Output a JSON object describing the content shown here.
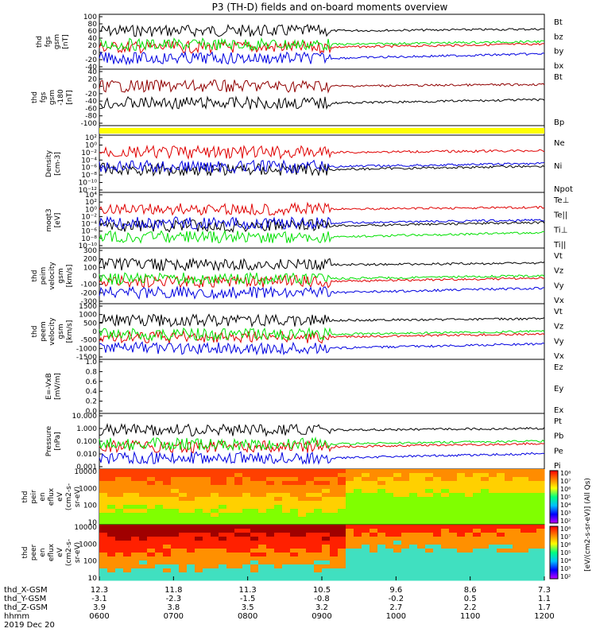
{
  "title": "P3 (TH-D) fields and on-board moments overview",
  "colors": {
    "black": "#000000",
    "red": "#e00000",
    "green": "#00e000",
    "blue": "#0000e0",
    "dark_red": "#900000",
    "yellow": "#ffff00"
  },
  "chart_data": {
    "type": "line",
    "time_range": [
      "2019-12-20 06:00",
      "2019-12-20 12:00"
    ],
    "panels": [
      {
        "name": "fgs-gsm",
        "ylabel": [
          "thd",
          "fgs",
          "gsm",
          "[nT]"
        ],
        "yticks": [
          "100",
          "80",
          "60",
          "40",
          "20",
          "0",
          "-20",
          "-40"
        ],
        "ylim": [
          -40,
          100
        ],
        "legend": [
          {
            "label": "Bt",
            "color": "black"
          },
          {
            "label": "bz",
            "color": "red"
          },
          {
            "label": "by",
            "color": "green"
          },
          {
            "label": "bx",
            "color": "blue"
          }
        ]
      },
      {
        "name": "fgs-gsm-theta-phi",
        "ylabel": [
          "thd",
          "fgs",
          "gsm",
          "-180",
          "[nT]"
        ],
        "yticks": [
          "40",
          "20",
          "0",
          "-20",
          "-40",
          "-60",
          "-80",
          "-100"
        ],
        "ylim": [
          -100,
          40
        ],
        "legend": [
          {
            "label": "Bt",
            "color": "dark_red"
          },
          {
            "label": "Bp",
            "color": "black"
          }
        ]
      },
      {
        "name": "flag",
        "ylabel": [],
        "yticks": [],
        "legend": []
      },
      {
        "name": "density",
        "ylabel": [
          "Density",
          "[cm-3]"
        ],
        "yticks": [
          "10²",
          "10⁰",
          "10⁻²",
          "10⁻⁴",
          "10⁻⁶",
          "10⁻⁸",
          "10⁻¹⁰",
          "10⁻¹²"
        ],
        "legend": [
          {
            "label": "Ne",
            "color": "red"
          },
          {
            "label": "Ni",
            "color": "black"
          },
          {
            "label": "Npot",
            "color": "blue"
          }
        ]
      },
      {
        "name": "temperature",
        "ylabel": [
          "moqt3",
          "[eV]"
        ],
        "yticks": [
          "10⁴",
          "10²",
          "10⁰",
          "10⁻²",
          "10⁻⁴",
          "10⁻⁶",
          "10⁻⁸",
          "10⁻¹⁰"
        ],
        "legend": [
          {
            "label": "Te⊥",
            "color": "red"
          },
          {
            "label": "Te||",
            "color": "black"
          },
          {
            "label": "Ti⊥",
            "color": "blue"
          },
          {
            "label": "Ti||",
            "color": "green"
          }
        ]
      },
      {
        "name": "peim-velocity",
        "ylabel": [
          "thd",
          "peim",
          "velocity",
          "gsm",
          "[km/s]"
        ],
        "yticks": [
          "300",
          "200",
          "100",
          "0",
          "-100",
          "-200",
          "-300"
        ],
        "ylim": [
          -300,
          300
        ],
        "legend": [
          {
            "label": "Vt",
            "color": "black"
          },
          {
            "label": "Vz",
            "color": "red"
          },
          {
            "label": "Vy",
            "color": "green"
          },
          {
            "label": "Vx",
            "color": "blue"
          }
        ]
      },
      {
        "name": "peem-velocity",
        "ylabel": [
          "thd",
          "peem",
          "velocity",
          "gsm",
          "[km/s]"
        ],
        "yticks": [
          "1500",
          "1000",
          "500",
          "0",
          "-500",
          "-1000",
          "-1500"
        ],
        "ylim": [
          -1500,
          1500
        ],
        "legend": [
          {
            "label": "Vt",
            "color": "black"
          },
          {
            "label": "Vz",
            "color": "red"
          },
          {
            "label": "Vy",
            "color": "green"
          },
          {
            "label": "Vx",
            "color": "blue"
          }
        ]
      },
      {
        "name": "efield",
        "ylabel": [
          "E=-VxB",
          "[mV/m]"
        ],
        "yticks": [
          "1.0",
          "0.8",
          "0.6",
          "0.4",
          "0.2",
          "0.0"
        ],
        "ylim": [
          0,
          1
        ],
        "legend": [
          {
            "label": "Ez",
            "color": "red"
          },
          {
            "label": "Ey",
            "color": "green"
          },
          {
            "label": "Ex",
            "color": "blue"
          }
        ]
      },
      {
        "name": "pressure",
        "ylabel": [
          "Pressure",
          "[nPa]"
        ],
        "yticks": [
          "10.000",
          "1.000",
          "0.100",
          "0.010",
          "0.001"
        ],
        "legend": [
          {
            "label": "Pt",
            "color": "black"
          },
          {
            "label": "Pb",
            "color": "red"
          },
          {
            "label": "Pe",
            "color": "green"
          },
          {
            "label": "Pi",
            "color": "blue"
          }
        ]
      },
      {
        "name": "peir-en-eflux",
        "ylabel": [
          "thd",
          "peir",
          "en",
          "eflux",
          "eV",
          "(cm2-s-",
          "sr-eV)"
        ],
        "yticks": [
          "10000",
          "1000",
          "100",
          "10"
        ]
      },
      {
        "name": "peer-en-eflux",
        "ylabel": [
          "thd",
          "peer",
          "en",
          "eflux",
          "eV",
          "(cm2-s-",
          "sr-eV)"
        ],
        "yticks": [
          "10000",
          "1000",
          "100",
          "10"
        ]
      }
    ],
    "colorbar": {
      "ticks": [
        "10⁸",
        "10⁷",
        "10⁶",
        "10⁵",
        "10⁴",
        "10³",
        "10²"
      ],
      "label": "[eV/(cm2-s-sr-eV)] (All Qs)"
    },
    "x_axis": {
      "rows": [
        {
          "label": "thd_X-GSM",
          "values": [
            "12.3",
            "11.8",
            "11.3",
            "10.5",
            "9.6",
            "8.6",
            "7.3"
          ]
        },
        {
          "label": "thd_Y-GSM",
          "values": [
            "-3.1",
            "-2.3",
            "-1.5",
            "-0.8",
            "-0.2",
            "0.5",
            "1.1"
          ]
        },
        {
          "label": "thd_Z-GSM",
          "values": [
            "3.9",
            "3.8",
            "3.5",
            "3.2",
            "2.7",
            "2.2",
            "1.7"
          ]
        },
        {
          "label": "hhmm",
          "values": [
            "0600",
            "0700",
            "0800",
            "0900",
            "1000",
            "1100",
            "1200"
          ]
        }
      ],
      "date": "2019 Dec 20"
    }
  }
}
